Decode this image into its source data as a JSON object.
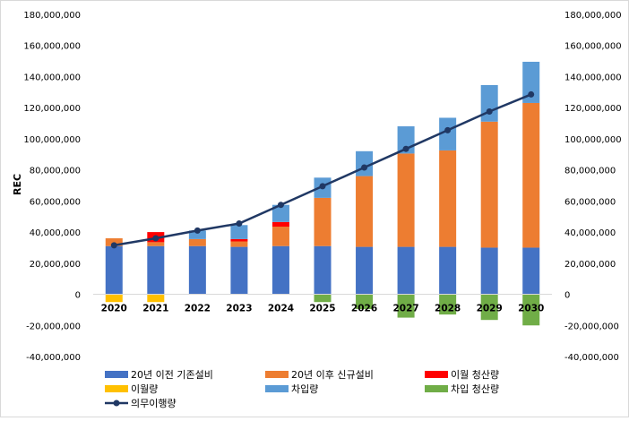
{
  "chart_data": {
    "type": "bar",
    "stacked": true,
    "ylabel": "REC",
    "ylim": [
      -40000000,
      180000000
    ],
    "y_ticks": [
      180000000,
      160000000,
      140000000,
      120000000,
      100000000,
      80000000,
      60000000,
      40000000,
      20000000,
      0,
      -20000000,
      -40000000
    ],
    "y_tick_labels": [
      "180,000,000",
      "160,000,000",
      "140,000,000",
      "120,000,000",
      "100,000,000",
      "80,000,000",
      "60,000,000",
      "40,000,000",
      "20,000,000",
      "0",
      "-20,000,000",
      "-40,000,000"
    ],
    "secondary_y_axis": true,
    "grid": false,
    "legend_position": "bottom",
    "categories": [
      "2020",
      "2021",
      "2022",
      "2023",
      "2024",
      "2025",
      "2026",
      "2027",
      "2028",
      "2029",
      "2030"
    ],
    "series": [
      {
        "name": "20년 이전 기존설비",
        "kind": "bar",
        "color": "#4472C4",
        "values": [
          31000000,
          31000000,
          31000000,
          30500000,
          31000000,
          31000000,
          30500000,
          30500000,
          30500000,
          30000000,
          30000000
        ]
      },
      {
        "name": "20년 이후 신규설비",
        "kind": "bar",
        "color": "#ED7D31",
        "values": [
          5000000,
          2500000,
          4500000,
          3500000,
          12500000,
          31000000,
          45500000,
          60000000,
          62000000,
          81000000,
          93000000
        ]
      },
      {
        "name": "이월 청산량",
        "kind": "bar",
        "color": "#FF0000",
        "values": [
          0,
          6500000,
          0,
          1500000,
          3000000,
          0,
          0,
          0,
          0,
          0,
          0
        ]
      },
      {
        "name": "이월량",
        "kind": "bar",
        "color": "#FFC000",
        "values": [
          -5000000,
          -5000000,
          0,
          0,
          0,
          0,
          0,
          0,
          0,
          0,
          0
        ]
      },
      {
        "name": "차입량",
        "kind": "bar",
        "color": "#5B9BD5",
        "values": [
          0,
          0,
          5500000,
          9000000,
          11000000,
          13000000,
          16000000,
          17500000,
          21000000,
          23500000,
          26500000
        ]
      },
      {
        "name": "차입 청산량",
        "kind": "bar",
        "color": "#70AD47",
        "values": [
          0,
          0,
          0,
          0,
          0,
          -5000000,
          -9500000,
          -15000000,
          -13000000,
          -16500000,
          -20000000
        ]
      },
      {
        "name": "의무이행량",
        "kind": "line",
        "color": "#203864",
        "values": [
          31500000,
          36000000,
          41000000,
          45500000,
          57500000,
          69500000,
          81500000,
          93500000,
          105500000,
          117500000,
          128500000
        ]
      }
    ]
  }
}
